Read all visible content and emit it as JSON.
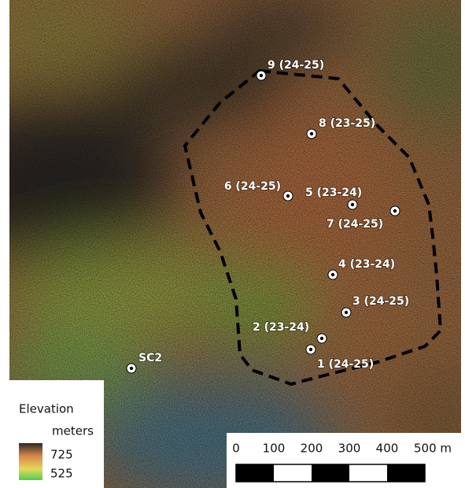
{
  "points": [
    {
      "label": "9 (24-25)"
    },
    {
      "label": "8 (23-25)"
    },
    {
      "label": "6 (24-25)"
    },
    {
      "label": "5 (23-24)"
    },
    {
      "label": "7 (24-25)"
    },
    {
      "label": "4 (23-24)"
    },
    {
      "label": "3 (24-25)"
    },
    {
      "label": "2 (23-24)"
    },
    {
      "label": "1 (24-25)"
    },
    {
      "label": "SC2"
    }
  ],
  "legend": {
    "title": "Elevation",
    "unit": "meters",
    "max": 725,
    "min": 525
  },
  "scale_bar": {
    "labels": [
      0,
      100,
      200,
      300,
      400,
      "500 m"
    ]
  }
}
